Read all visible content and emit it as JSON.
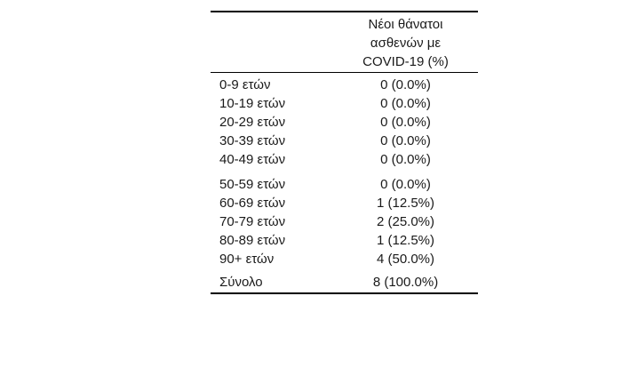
{
  "page": {
    "background_color": "#ffffff",
    "rule_color": "#000000",
    "text_color": "#1a1a1a"
  },
  "table": {
    "header": {
      "label_column": "",
      "value_column_lines": [
        "Νέοι θάνατοι",
        "ασθενών με",
        "COVID-19 (%)"
      ],
      "value_column_label": "Νέοι θάνατοι ασθενών με COVID-19 (%)"
    },
    "groups": [
      {
        "rows": [
          {
            "label": "0-9 ετών",
            "value": "0 (0.0%)"
          },
          {
            "label": "10-19 ετών",
            "value": "0 (0.0%)"
          },
          {
            "label": "20-29 ετών",
            "value": "0 (0.0%)"
          },
          {
            "label": "30-39 ετών",
            "value": "0 (0.0%)"
          },
          {
            "label": "40-49 ετών",
            "value": "0 (0.0%)"
          }
        ]
      },
      {
        "rows": [
          {
            "label": "50-59 ετών",
            "value": "0 (0.0%)"
          },
          {
            "label": "60-69 ετών",
            "value": "1 (12.5%)"
          },
          {
            "label": "70-79 ετών",
            "value": "2 (25.0%)"
          },
          {
            "label": "80-89 ετών",
            "value": "1 (12.5%)"
          },
          {
            "label": "90+ ετών",
            "value": "4 (50.0%)"
          }
        ]
      }
    ],
    "total": {
      "label": "Σύνολο",
      "value": "8 (100.0%)"
    }
  },
  "chart_data": {
    "type": "table",
    "title": "",
    "columns": [
      "",
      "Νέοι θάνατοι ασθενών με COVID-19 (%)"
    ],
    "categories": [
      "0-9 ετών",
      "10-19 ετών",
      "20-29 ετών",
      "30-39 ετών",
      "40-49 ετών",
      "50-59 ετών",
      "60-69 ετών",
      "70-79 ετών",
      "80-89 ετών",
      "90+ ετών"
    ],
    "rows": [
      [
        "0-9 ετών",
        "0 (0.0%)"
      ],
      [
        "10-19 ετών",
        "0 (0.0%)"
      ],
      [
        "20-29 ετών",
        "0 (0.0%)"
      ],
      [
        "30-39 ετών",
        "0 (0.0%)"
      ],
      [
        "40-49 ετών",
        "0 (0.0%)"
      ],
      [
        "50-59 ετών",
        "0 (0.0%)"
      ],
      [
        "60-69 ετών",
        "1 (12.5%)"
      ],
      [
        "70-79 ετών",
        "2 (25.0%)"
      ],
      [
        "80-89 ετών",
        "1 (12.5%)"
      ],
      [
        "90+ ετών",
        "4 (50.0%)"
      ],
      [
        "Σύνολο",
        "8 (100.0%)"
      ]
    ],
    "counts": [
      0,
      0,
      0,
      0,
      0,
      0,
      1,
      2,
      1,
      4
    ],
    "percentages": [
      0.0,
      0.0,
      0.0,
      0.0,
      0.0,
      0.0,
      12.5,
      25.0,
      12.5,
      50.0
    ],
    "total_count": 8,
    "total_percentage": 100.0,
    "layout": {
      "grid": false,
      "row_group_breaks_after": [
        "40-49 ετών",
        "90+ ετών"
      ]
    }
  }
}
